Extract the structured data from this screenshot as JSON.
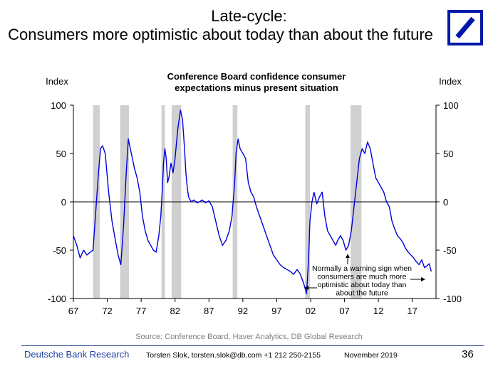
{
  "slide": {
    "title_line1": "Late-cycle:",
    "title_line2": "Consumers more optimistic about today than about the future",
    "logo_icon": "deutsche-bank-slash-square-logo",
    "logo_color": "#0018a8",
    "source": "Source: Conference Board, Haver Analytics, DB Global Research",
    "footer_brand": "Deutsche Bank Research",
    "footer_contact": "Torsten Slok, torsten.slok@db.com +1 212 250-2155",
    "footer_date": "November 2019",
    "page_number": "36"
  },
  "chart_data": {
    "type": "line",
    "title": "Conference Board confidence consumer expectations minus present situation",
    "title_lines": [
      "Conference Board confidence consumer",
      "expectations minus present situation"
    ],
    "ylabel_left": "Index",
    "ylabel_right": "Index",
    "ylim": [
      -100,
      100
    ],
    "yticks": [
      100,
      50,
      0,
      -50,
      -100
    ],
    "xlim": [
      1967,
      2020.5
    ],
    "xticks": [
      1967,
      1972,
      1977,
      1982,
      1987,
      1992,
      1997,
      2002,
      2007,
      2012,
      2017
    ],
    "xtick_labels": [
      "67",
      "72",
      "77",
      "82",
      "87",
      "92",
      "97",
      "02",
      "07",
      "12",
      "17"
    ],
    "zero_line": true,
    "grid": false,
    "line_color": "#0000dd",
    "recession_color": "#d0d0d0",
    "recessions": [
      [
        1969.9,
        1970.9
      ],
      [
        1973.9,
        1975.2
      ],
      [
        1980.0,
        1980.5
      ],
      [
        1981.5,
        1982.9
      ],
      [
        1990.5,
        1991.2
      ],
      [
        2001.2,
        2001.9
      ],
      [
        2007.9,
        2009.5
      ]
    ],
    "annotation": {
      "lines": [
        "Normally a warning sign when",
        "consumers are much more",
        "optimistic about today than",
        "about the future"
      ]
    },
    "series": [
      {
        "x": [
          1967.0,
          1967.5,
          1968.0,
          1968.5,
          1969.0,
          1969.5,
          1969.9,
          1970.3,
          1970.7,
          1971.0,
          1971.3,
          1971.7,
          1972.2,
          1972.7,
          1973.2,
          1973.6,
          1974.0,
          1974.4,
          1974.8,
          1975.1,
          1975.4,
          1975.7,
          1976.0,
          1976.4,
          1976.8,
          1977.2,
          1977.6,
          1978.0,
          1978.4,
          1978.8,
          1979.2,
          1979.6,
          1979.9,
          1980.1,
          1980.3,
          1980.5,
          1980.7,
          1980.9,
          1981.1,
          1981.4,
          1981.7,
          1982.0,
          1982.4,
          1982.8,
          1983.1,
          1983.4,
          1983.6,
          1983.8,
          1984.0,
          1984.4,
          1984.8,
          1985.2,
          1985.6,
          1986.0,
          1986.5,
          1987.0,
          1987.5,
          1988.0,
          1988.5,
          1989.0,
          1989.5,
          1990.0,
          1990.4,
          1990.8,
          1991.0,
          1991.3,
          1991.6,
          1992.0,
          1992.4,
          1992.8,
          1993.2,
          1993.6,
          1994.0,
          1994.5,
          1995.0,
          1995.5,
          1996.0,
          1996.5,
          1997.0,
          1997.5,
          1998.0,
          1998.5,
          1999.0,
          1999.5,
          2000.0,
          2000.5,
          2001.0,
          2001.4,
          2001.7,
          2001.9,
          2002.2,
          2002.5,
          2002.9,
          2003.3,
          2003.7,
          2004.1,
          2004.5,
          2004.9,
          2005.3,
          2005.7,
          2006.0,
          2006.4,
          2006.8,
          2007.2,
          2007.6,
          2008.0,
          2008.4,
          2008.8,
          2009.2,
          2009.6,
          2010.0,
          2010.4,
          2010.8,
          2011.2,
          2011.6,
          2012.0,
          2012.4,
          2012.8,
          2013.2,
          2013.6,
          2014.0,
          2014.4,
          2014.8,
          2015.2,
          2015.6,
          2016.0,
          2016.4,
          2016.8,
          2017.2,
          2017.6,
          2018.0,
          2018.4,
          2018.8,
          2019.2,
          2019.5,
          2019.8
        ],
        "y": [
          -35,
          -45,
          -58,
          -50,
          -55,
          -52,
          -50,
          -10,
          30,
          55,
          58,
          50,
          10,
          -20,
          -40,
          -55,
          -65,
          -25,
          30,
          65,
          55,
          45,
          35,
          25,
          10,
          -15,
          -30,
          -40,
          -45,
          -50,
          -52,
          -35,
          -15,
          10,
          40,
          55,
          45,
          20,
          25,
          40,
          30,
          45,
          75,
          95,
          85,
          55,
          30,
          15,
          5,
          0,
          2,
          -1,
          0,
          2,
          -1,
          1,
          -5,
          -20,
          -35,
          -45,
          -40,
          -30,
          -15,
          20,
          50,
          65,
          55,
          50,
          45,
          20,
          10,
          5,
          -5,
          -15,
          -25,
          -35,
          -45,
          -55,
          -60,
          -65,
          -68,
          -70,
          -72,
          -75,
          -70,
          -75,
          -85,
          -95,
          -60,
          -20,
          0,
          10,
          -2,
          5,
          10,
          -15,
          -30,
          -35,
          -40,
          -45,
          -40,
          -35,
          -40,
          -50,
          -45,
          -30,
          -5,
          20,
          45,
          55,
          50,
          62,
          55,
          40,
          25,
          20,
          15,
          10,
          0,
          -5,
          -20,
          -28,
          -35,
          -38,
          -42,
          -48,
          -52,
          -55,
          -58,
          -62,
          -65,
          -60,
          -68,
          -66,
          -64,
          -72
        ]
      }
    ]
  }
}
